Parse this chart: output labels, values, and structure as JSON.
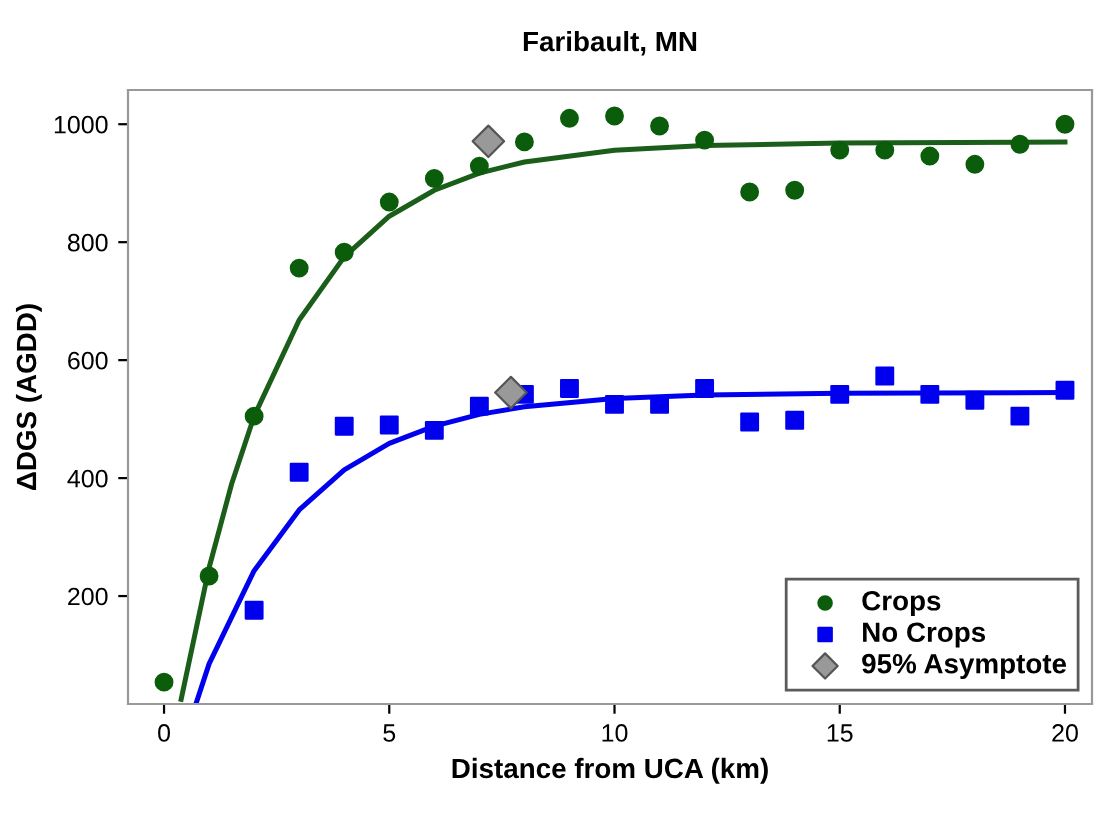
{
  "chart_data": {
    "type": "scatter",
    "title": "Faribault, MN",
    "xlabel": "Distance from UCA (km)",
    "ylabel": "ΔDGS (AGDD)",
    "xlim": [
      -0.8,
      20.6
    ],
    "ylim": [
      17,
      1058
    ],
    "xticks": [
      0,
      5,
      10,
      15,
      20
    ],
    "yticks": [
      200,
      400,
      600,
      800,
      1000
    ],
    "grid": false,
    "legend": "bottom right",
    "series": [
      {
        "type": "line",
        "color": "#1a5e1a",
        "x": [
          0.38,
          1,
          1.5,
          2,
          3,
          4,
          5,
          6,
          7,
          8,
          10,
          12,
          15,
          20
        ],
        "values": [
          25,
          248,
          390,
          505,
          668,
          775,
          844,
          888,
          917,
          936,
          956,
          964,
          968,
          970
        ]
      },
      {
        "type": "line",
        "color": "#0000ee",
        "x": [
          0.72,
          1,
          2,
          3,
          4,
          5,
          6,
          7,
          8,
          10,
          12,
          15,
          20
        ],
        "values": [
          20,
          85,
          243,
          346,
          414,
          459,
          488,
          508,
          521,
          535,
          541,
          544,
          545
        ]
      },
      {
        "name": "Crops",
        "marker": "circle",
        "color": "#0b5d0b",
        "x": [
          0,
          1,
          2,
          3,
          4,
          5,
          6,
          7,
          8,
          9,
          10,
          11,
          12,
          13,
          14,
          15,
          16,
          17,
          18,
          19,
          20
        ],
        "values": [
          54,
          234,
          505,
          756,
          783,
          868,
          908,
          929,
          970,
          1010,
          1014,
          997,
          973,
          885,
          888,
          956,
          956,
          946,
          932,
          966,
          1000
        ]
      },
      {
        "name": "No Crops",
        "marker": "square",
        "color": "#0000ee",
        "x": [
          2,
          3,
          4,
          5,
          6,
          7,
          8,
          9,
          10,
          11,
          12,
          13,
          14,
          15,
          16,
          17,
          18,
          19,
          20
        ],
        "values": [
          176,
          410,
          488,
          490,
          481,
          522,
          542,
          552,
          525,
          525,
          552,
          495,
          498,
          542,
          573,
          542,
          532,
          505,
          549
        ]
      },
      {
        "name": "95% Asymptote",
        "marker": "diamond",
        "color": "#999999",
        "x": [
          7.2,
          7.7
        ],
        "values": [
          971,
          545
        ]
      }
    ]
  }
}
